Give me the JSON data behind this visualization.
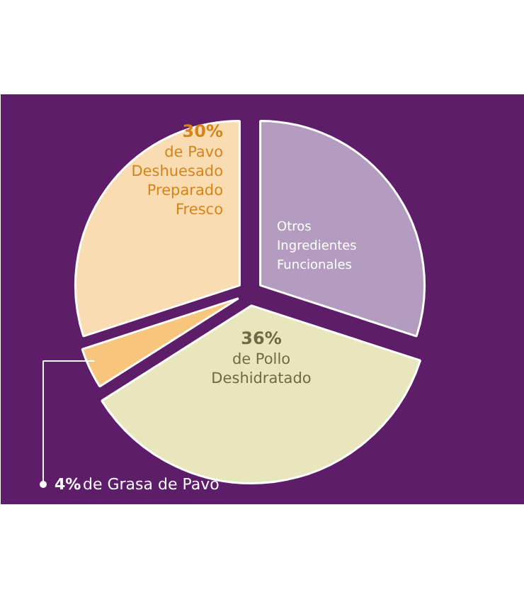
{
  "chart_data": {
    "type": "pie",
    "categories": [
      "Otros\nIngredientes\nFuncionales",
      "de Pollo\nDeshidratado",
      "de Grasa de Pavo",
      "de Pavo\nDeshuesado\nPreparado\nFresco"
    ],
    "values": [
      30,
      36,
      4,
      30
    ],
    "colors": [
      "#b49cc0",
      "#e9e6bd",
      "#f7c67c",
      "#f9dcb2"
    ],
    "value_labels": [
      null,
      "36%",
      "4%",
      "30%"
    ]
  }
}
